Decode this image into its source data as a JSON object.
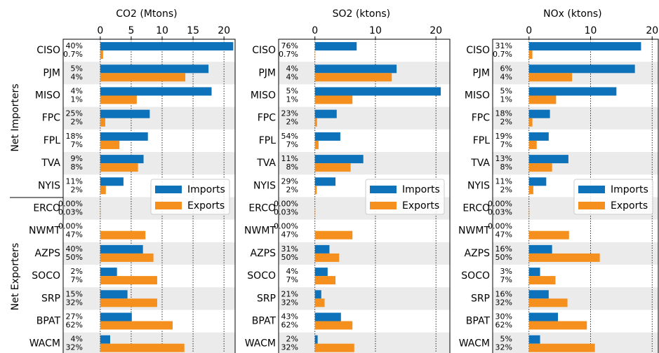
{
  "group_labels": [
    "Net Importers",
    "Net Exporters"
  ],
  "chart_data": [
    {
      "type": "barh",
      "title": "CO2 (Mtons)",
      "categories": [
        "CISO",
        "PJM",
        "MISO",
        "FPC",
        "FPL",
        "TVA",
        "NYIS",
        "ERCO",
        "NWMT",
        "AZPS",
        "SOCO",
        "SRP",
        "BPAT",
        "WACM"
      ],
      "series": [
        {
          "name": "Imports",
          "color": "#0d72ba",
          "values": [
            21.5,
            17.5,
            18.0,
            8.0,
            7.7,
            7.0,
            3.75,
            0,
            0,
            6.9,
            2.7,
            4.4,
            5.1,
            1.6
          ],
          "share_labels": [
            "40%",
            "5%",
            "4%",
            "25%",
            "18%",
            "9%",
            "11%",
            "0.00%",
            "0.00%",
            "40%",
            "2%",
            "15%",
            "27%",
            "4%"
          ]
        },
        {
          "name": "Exports",
          "color": "#f5901e",
          "values": [
            0.45,
            13.75,
            5.9,
            0.8,
            3.1,
            6.1,
            0.9,
            0.05,
            7.3,
            8.6,
            9.2,
            9.2,
            11.7,
            13.6
          ],
          "share_labels": [
            "0.7%",
            "4%",
            "1%",
            "2%",
            "7%",
            "8%",
            "2%",
            "0.03%",
            "47%",
            "50%",
            "7%",
            "32%",
            "62%",
            "32%"
          ]
        }
      ],
      "xlim": [
        -6,
        21.8
      ],
      "xticks": [
        0,
        5,
        10,
        15,
        20
      ],
      "grid": true,
      "legend": "right"
    },
    {
      "type": "barh",
      "title": "SO2 (ktons)",
      "categories": [
        "CISO",
        "PJM",
        "MISO",
        "FPC",
        "FPL",
        "TVA",
        "NYIS",
        "ERCO",
        "NWMT",
        "AZPS",
        "SOCO",
        "SRP",
        "BPAT",
        "WACM"
      ],
      "series": [
        {
          "name": "Imports",
          "color": "#0d72ba",
          "values": [
            6.9,
            13.5,
            20.8,
            3.6,
            4.2,
            8.0,
            3.4,
            0,
            0,
            2.4,
            2.1,
            1.05,
            4.3,
            0.45
          ],
          "share_labels": [
            "76%",
            "4%",
            "5%",
            "23%",
            "54%",
            "11%",
            "29%",
            "0.00%",
            "0.00%",
            "31%",
            "4%",
            "21%",
            "43%",
            "2%"
          ]
        },
        {
          "name": "Exports",
          "color": "#f5901e",
          "values": [
            0.05,
            12.7,
            6.2,
            0.35,
            0.6,
            5.9,
            0.3,
            0.05,
            6.2,
            4.0,
            3.4,
            1.6,
            6.2,
            6.5
          ],
          "share_labels": [
            "0.7%",
            "4%",
            "1%",
            "2%",
            "7%",
            "8%",
            "2%",
            "0.03%",
            "47%",
            "50%",
            "7%",
            "32%",
            "62%",
            "32%"
          ]
        }
      ],
      "xlim": [
        -6,
        22.3
      ],
      "xticks": [
        0,
        10,
        20
      ],
      "grid": true,
      "legend": "right"
    },
    {
      "type": "barh",
      "title": "NOx (ktons)",
      "categories": [
        "CISO",
        "PJM",
        "MISO",
        "FPC",
        "FPL",
        "TVA",
        "NYIS",
        "ERCO",
        "NWMT",
        "AZPS",
        "SOCO",
        "SRP",
        "BPAT",
        "WACM"
      ],
      "series": [
        {
          "name": "Imports",
          "color": "#0d72ba",
          "values": [
            18.2,
            17.2,
            14.2,
            3.4,
            3.2,
            6.4,
            2.8,
            0,
            0,
            3.75,
            1.8,
            3.2,
            4.7,
            1.8
          ],
          "share_labels": [
            "31%",
            "6%",
            "5%",
            "18%",
            "19%",
            "13%",
            "11%",
            "0.00%",
            "0.00%",
            "16%",
            "3%",
            "16%",
            "30%",
            "5%"
          ]
        },
        {
          "name": "Exports",
          "color": "#f5901e",
          "values": [
            0.55,
            7.0,
            4.4,
            0.55,
            1.25,
            3.75,
            0.7,
            0.05,
            6.5,
            11.5,
            4.3,
            6.25,
            9.4,
            10.7
          ],
          "share_labels": [
            "0.7%",
            "4%",
            "1%",
            "2%",
            "7%",
            "8%",
            "2%",
            "0.03%",
            "47%",
            "50%",
            "7%",
            "32%",
            "62%",
            "32%"
          ]
        }
      ],
      "xlim": [
        -5.9,
        21
      ],
      "xticks": [
        0,
        10,
        20
      ],
      "grid": true,
      "legend": "right"
    }
  ]
}
